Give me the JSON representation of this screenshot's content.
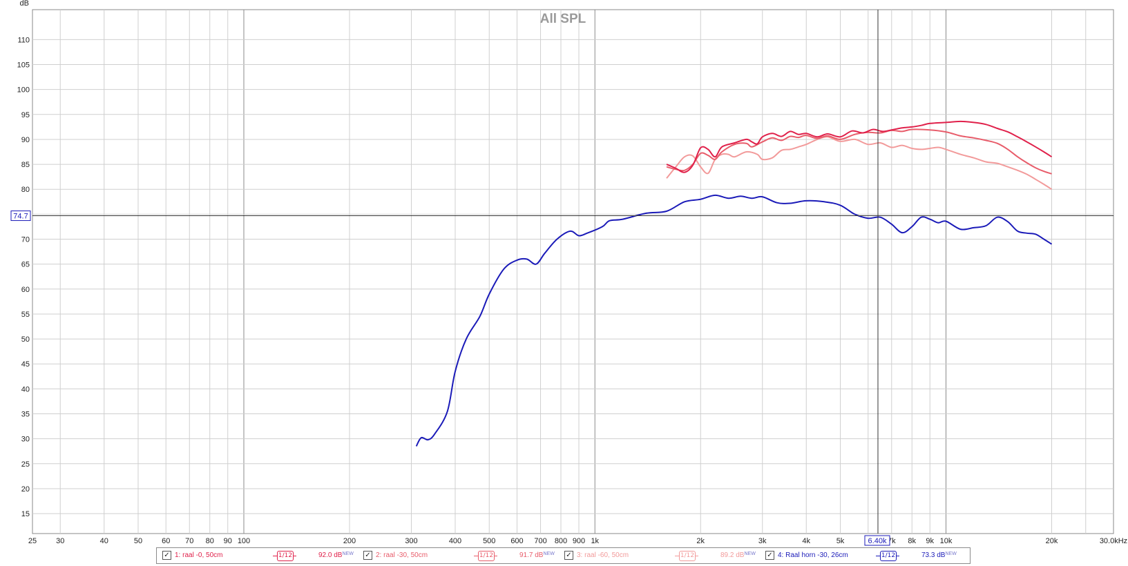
{
  "chart_data": {
    "type": "line",
    "title": "All SPL",
    "ylabel": "dB",
    "xscale": "log",
    "xlim": [
      25,
      30000
    ],
    "ylim": [
      11,
      116
    ],
    "grid": true,
    "x_ticks": [
      {
        "v": 25,
        "label": "25"
      },
      {
        "v": 30,
        "label": "30"
      },
      {
        "v": 40,
        "label": "40"
      },
      {
        "v": 50,
        "label": "50"
      },
      {
        "v": 60,
        "label": "60"
      },
      {
        "v": 70,
        "label": "70"
      },
      {
        "v": 80,
        "label": "80"
      },
      {
        "v": 90,
        "label": "90"
      },
      {
        "v": 100,
        "label": "100"
      },
      {
        "v": 200,
        "label": "200"
      },
      {
        "v": 300,
        "label": "300"
      },
      {
        "v": 400,
        "label": "400"
      },
      {
        "v": 500,
        "label": "500"
      },
      {
        "v": 600,
        "label": "600"
      },
      {
        "v": 700,
        "label": "700"
      },
      {
        "v": 800,
        "label": "800"
      },
      {
        "v": 900,
        "label": "900"
      },
      {
        "v": 1000,
        "label": "1k"
      },
      {
        "v": 2000,
        "label": "2k"
      },
      {
        "v": 3000,
        "label": "3k"
      },
      {
        "v": 4000,
        "label": "4k"
      },
      {
        "v": 5000,
        "label": "5k"
      },
      {
        "v": 7000,
        "label": "7k"
      },
      {
        "v": 8000,
        "label": "8k"
      },
      {
        "v": 9000,
        "label": "9k"
      },
      {
        "v": 10000,
        "label": "10k"
      },
      {
        "v": 20000,
        "label": "20k"
      },
      {
        "v": 30000,
        "label": "30.0kHz"
      }
    ],
    "y_ticks": [
      15,
      20,
      25,
      30,
      35,
      40,
      45,
      50,
      55,
      60,
      65,
      70,
      80,
      85,
      90,
      95,
      100,
      105,
      110
    ],
    "major_x": [
      100,
      1000,
      10000
    ],
    "cursor": {
      "x": 6400,
      "x_label": "6.40k",
      "y": 74.7,
      "y_label": "74.7"
    },
    "series": [
      {
        "name": "1: raal -0, 50cm",
        "color": "#e0204a",
        "smoothing": "1/12",
        "value_label": "92.0 dB",
        "badge": "NEW",
        "x": [
          1600,
          1700,
          1800,
          1900,
          2000,
          2100,
          2200,
          2300,
          2500,
          2700,
          2800,
          2900,
          3000,
          3200,
          3400,
          3600,
          3800,
          4000,
          4300,
          4600,
          5000,
          5400,
          5800,
          6200,
          6600,
          7000,
          7500,
          8000,
          8500,
          9000,
          10000,
          11000,
          12000,
          13000,
          14000,
          15000,
          16000,
          17000,
          18000,
          19000,
          20000
        ],
        "y": [
          85,
          84.2,
          83.4,
          84.8,
          88.3,
          88,
          86.5,
          88.5,
          89.3,
          90,
          89.5,
          89.1,
          90.5,
          91.2,
          90.6,
          91.6,
          91,
          91.2,
          90.5,
          91.1,
          90.5,
          91.7,
          91.3,
          92,
          91.6,
          91.9,
          92.3,
          92.5,
          92.8,
          93.2,
          93.4,
          93.6,
          93.4,
          93,
          92.2,
          91.5,
          90.5,
          89.5,
          88.5,
          87.5,
          86.5
        ]
      },
      {
        "name": "2: raal -30, 50cm",
        "color": "#e85c6a",
        "smoothing": "1/12",
        "value_label": "91.7 dB",
        "badge": "NEW",
        "x": [
          1600,
          1700,
          1800,
          1900,
          2000,
          2100,
          2200,
          2300,
          2500,
          2700,
          2800,
          3000,
          3200,
          3400,
          3600,
          3800,
          4000,
          4300,
          4600,
          5000,
          5500,
          6000,
          6500,
          7000,
          7500,
          8000,
          9000,
          10000,
          11000,
          12000,
          13000,
          14000,
          15000,
          16000,
          17000,
          18000,
          19000,
          20000
        ],
        "y": [
          84.5,
          84,
          83.8,
          85,
          87.2,
          86.8,
          86,
          87.5,
          89,
          89.2,
          88.5,
          89.5,
          90.3,
          89.8,
          90.6,
          90.4,
          90.8,
          90.2,
          90.7,
          90,
          91,
          91.4,
          91.3,
          91.8,
          91.6,
          92,
          91.9,
          91.5,
          90.7,
          90.3,
          89.8,
          89.2,
          88,
          86.5,
          85.3,
          84.3,
          83.6,
          83.1
        ]
      },
      {
        "name": "3: raal -60, 50cm",
        "color": "#f29a9a",
        "smoothing": "1/12",
        "value_label": "89.2 dB",
        "badge": "NEW",
        "x": [
          1600,
          1700,
          1800,
          1900,
          2000,
          2100,
          2200,
          2300,
          2400,
          2500,
          2700,
          2900,
          3000,
          3200,
          3400,
          3600,
          3800,
          4000,
          4300,
          4600,
          5000,
          5500,
          6000,
          6500,
          7000,
          7500,
          8000,
          8500,
          9000,
          9500,
          10000,
          11000,
          12000,
          13000,
          14000,
          15000,
          16000,
          17000,
          18000,
          19000,
          20000
        ],
        "y": [
          82.2,
          84.5,
          86.5,
          86.7,
          84.5,
          83.2,
          86,
          87,
          87,
          86.5,
          87.5,
          87,
          86,
          86.3,
          87.8,
          88,
          88.5,
          89,
          90,
          90.5,
          89.6,
          90,
          89,
          89.3,
          88.4,
          88.8,
          88.2,
          88,
          88.2,
          88.4,
          88,
          87,
          86.3,
          85.5,
          85.2,
          84.5,
          83.8,
          83,
          82,
          81,
          80
        ]
      },
      {
        "name": "4: Raal horn -30, 26cm",
        "color": "#1a1ab8",
        "smoothing": "1/12",
        "value_label": "73.3 dB",
        "badge": "NEW",
        "x": [
          310,
          320,
          335,
          350,
          380,
          400,
          430,
          470,
          500,
          550,
          600,
          640,
          680,
          720,
          780,
          850,
          900,
          950,
          1050,
          1100,
          1200,
          1400,
          1600,
          1800,
          2000,
          2200,
          2400,
          2600,
          2800,
          3000,
          3300,
          3600,
          4000,
          4500,
          5000,
          5500,
          6000,
          6500,
          7000,
          7500,
          8000,
          8500,
          9000,
          9500,
          10000,
          11000,
          12000,
          13000,
          14000,
          15000,
          16000,
          17000,
          18000,
          19000,
          20000
        ],
        "y": [
          28.5,
          30.2,
          29.8,
          31,
          35.5,
          43.5,
          50,
          54.5,
          59,
          64,
          65.8,
          66,
          65,
          67.2,
          70,
          71.6,
          70.7,
          71.2,
          72.5,
          73.7,
          74,
          75.2,
          75.6,
          77.5,
          78,
          78.8,
          78.2,
          78.6,
          78.2,
          78.5,
          77.3,
          77.2,
          77.7,
          77.5,
          76.8,
          75,
          74.2,
          74.4,
          73,
          71.3,
          72.5,
          74.4,
          74,
          73.3,
          73.6,
          72,
          72.3,
          72.7,
          74.4,
          73.5,
          71.6,
          71.2,
          71,
          70,
          69
        ]
      }
    ]
  }
}
